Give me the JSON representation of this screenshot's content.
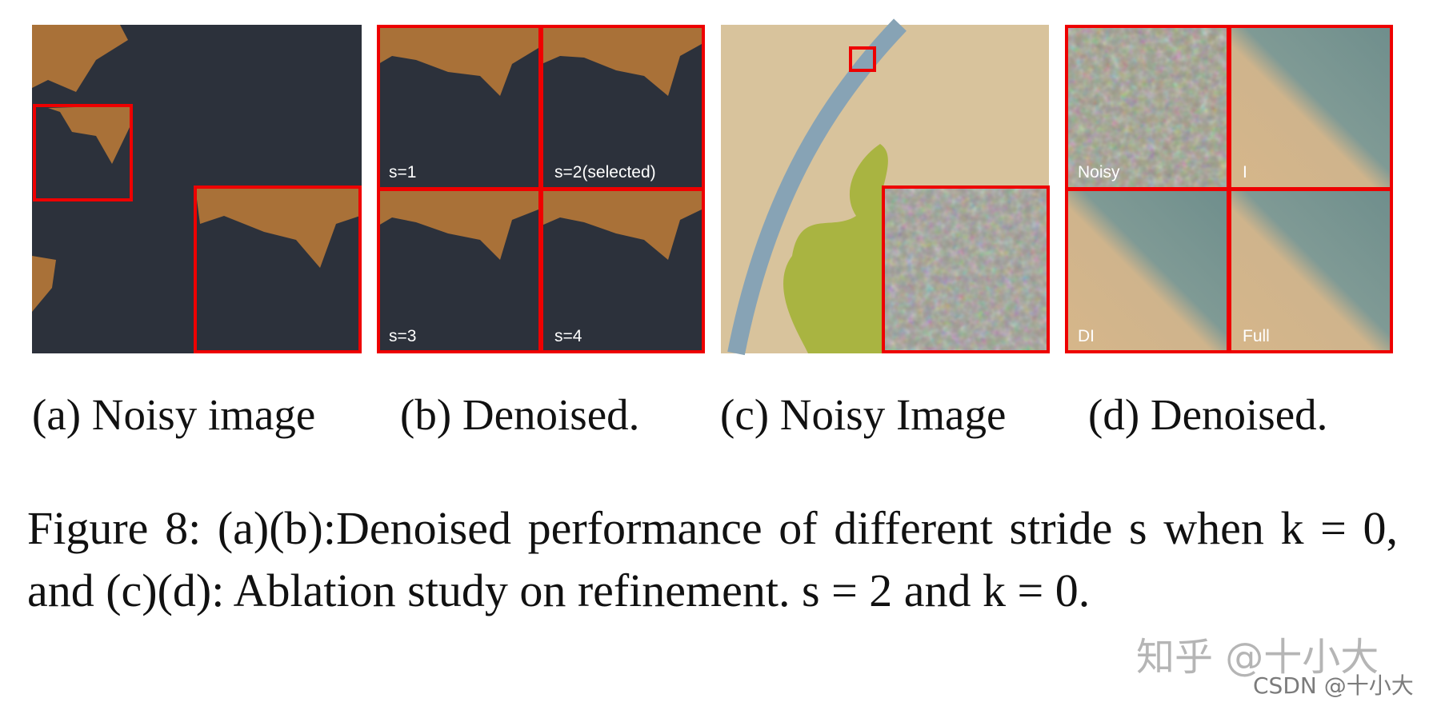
{
  "panels": [
    {
      "caption": "(a) Noisy image"
    },
    {
      "caption": "(b) Denoised.",
      "tiles": [
        "s=1",
        "s=2(selected)",
        "s=3",
        "s=4"
      ]
    },
    {
      "caption": "(c) Noisy Image"
    },
    {
      "caption": "(d) Denoised.",
      "tiles": [
        "Noisy",
        "I",
        "DI",
        "Full"
      ]
    }
  ],
  "caption": "Figure 8: (a)(b):Denoised performance of different stride s when k = 0, and (c)(d): Ablation study on refinement. s = 2 and k = 0.",
  "watermarks": [
    "知乎 @十小大",
    "CSDN @十小大"
  ]
}
